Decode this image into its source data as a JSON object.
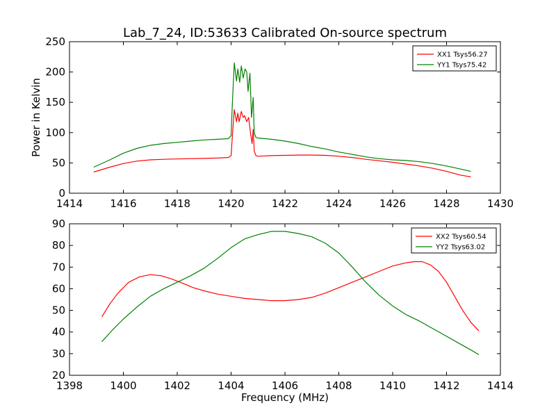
{
  "title": "Lab_7_24, ID:53633 Calibrated On-source spectrum",
  "colors": {
    "xx": "#ff0000",
    "yy": "#008000",
    "axes": "#000000"
  },
  "chart_data": [
    {
      "type": "line",
      "xlabel": "",
      "ylabel": "Power in Kelvin",
      "xlim": [
        1414,
        1430
      ],
      "ylim": [
        0,
        250
      ],
      "xticks": [
        1414,
        1416,
        1418,
        1420,
        1422,
        1424,
        1426,
        1428,
        1430
      ],
      "yticks": [
        0,
        50,
        100,
        150,
        200,
        250
      ],
      "grid": false,
      "legend_position": "top-right",
      "series": [
        {
          "name": "XX1 Tsys56.27",
          "color": "#ff0000",
          "x": [
            1414.9,
            1415.5,
            1416.0,
            1416.5,
            1417.0,
            1417.5,
            1418.0,
            1418.5,
            1419.0,
            1419.5,
            1419.9,
            1420.0,
            1420.05,
            1420.12,
            1420.2,
            1420.25,
            1420.3,
            1420.38,
            1420.45,
            1420.5,
            1420.58,
            1420.65,
            1420.72,
            1420.78,
            1420.82,
            1420.86,
            1420.92,
            1421.0,
            1421.5,
            1422.0,
            1422.5,
            1423.0,
            1423.5,
            1424.0,
            1424.5,
            1425.0,
            1425.5,
            1426.0,
            1426.5,
            1427.0,
            1427.5,
            1428.0,
            1428.5,
            1428.9
          ],
          "y": [
            35,
            43,
            49,
            53,
            55,
            56,
            56.5,
            57,
            57.5,
            58,
            59,
            62,
            95,
            138,
            118,
            132,
            118,
            135,
            125,
            128,
            118,
            125,
            100,
            82,
            105,
            70,
            62,
            61,
            62,
            62.5,
            63,
            63,
            62.5,
            61,
            59,
            56,
            53.5,
            51,
            48,
            45,
            41,
            36,
            30,
            27
          ]
        },
        {
          "name": "YY1 Tsys75.42",
          "color": "#008000",
          "x": [
            1414.9,
            1415.5,
            1416.0,
            1416.5,
            1417.0,
            1417.5,
            1418.0,
            1418.5,
            1419.0,
            1419.5,
            1419.9,
            1420.0,
            1420.05,
            1420.12,
            1420.2,
            1420.25,
            1420.32,
            1420.38,
            1420.45,
            1420.52,
            1420.58,
            1420.63,
            1420.7,
            1420.76,
            1420.82,
            1420.86,
            1420.92,
            1421.0,
            1421.5,
            1422.0,
            1422.5,
            1423.0,
            1423.5,
            1424.0,
            1424.5,
            1425.0,
            1425.5,
            1426.0,
            1426.5,
            1427.0,
            1427.5,
            1428.0,
            1428.5,
            1428.9
          ],
          "y": [
            43,
            55,
            66,
            74,
            79,
            82,
            84,
            86,
            88,
            89,
            90,
            95,
            150,
            215,
            185,
            205,
            183,
            210,
            190,
            205,
            200,
            168,
            198,
            125,
            158,
            100,
            92,
            91,
            89,
            86,
            82,
            77,
            73,
            68,
            64,
            60,
            57,
            55,
            54,
            52,
            49,
            45,
            40,
            36
          ]
        }
      ]
    },
    {
      "type": "line",
      "xlabel": "Frequency (MHz)",
      "ylabel": "",
      "xlim": [
        1398,
        1414
      ],
      "ylim": [
        20,
        90
      ],
      "xticks": [
        1398,
        1400,
        1402,
        1404,
        1406,
        1408,
        1410,
        1412,
        1414
      ],
      "yticks": [
        20,
        30,
        40,
        50,
        60,
        70,
        80,
        90
      ],
      "grid": false,
      "legend_position": "top-right",
      "series": [
        {
          "name": "XX2 Tsys60.54",
          "color": "#ff0000",
          "x": [
            1399.2,
            1399.5,
            1399.8,
            1400.2,
            1400.6,
            1401.0,
            1401.4,
            1401.8,
            1402.2,
            1402.6,
            1403.0,
            1403.5,
            1404.0,
            1404.5,
            1405.0,
            1405.5,
            1406.0,
            1406.5,
            1407.0,
            1407.5,
            1408.0,
            1408.5,
            1409.0,
            1409.5,
            1410.0,
            1410.5,
            1410.8,
            1411.1,
            1411.4,
            1411.7,
            1412.0,
            1412.3,
            1412.6,
            1412.9,
            1413.2
          ],
          "y": [
            47,
            53,
            58,
            63,
            65.5,
            66.5,
            66,
            64.5,
            62.5,
            60.5,
            59,
            57.5,
            56.5,
            55.5,
            55,
            54.5,
            54.5,
            55,
            56,
            58,
            60.5,
            63,
            65.5,
            68,
            70.5,
            72,
            72.5,
            72.5,
            71,
            68,
            63,
            56.5,
            50,
            44.5,
            40.5
          ]
        },
        {
          "name": "YY2 Tsys63.02",
          "color": "#008000",
          "x": [
            1399.2,
            1399.6,
            1400.0,
            1400.5,
            1401.0,
            1401.5,
            1402.0,
            1402.5,
            1403.0,
            1403.5,
            1404.0,
            1404.5,
            1405.0,
            1405.5,
            1406.0,
            1406.5,
            1407.0,
            1407.5,
            1408.0,
            1408.5,
            1409.0,
            1409.5,
            1410.0,
            1410.5,
            1411.0,
            1411.5,
            1412.0,
            1412.5,
            1413.0,
            1413.2
          ],
          "y": [
            35.5,
            41,
            46,
            51.5,
            56.5,
            60,
            63,
            66,
            69.5,
            74,
            79,
            83,
            85,
            86.5,
            86.5,
            85.5,
            84,
            81,
            76.5,
            70,
            63,
            57,
            52,
            48,
            45,
            41.5,
            38,
            34.5,
            31,
            29.5
          ]
        }
      ]
    }
  ]
}
